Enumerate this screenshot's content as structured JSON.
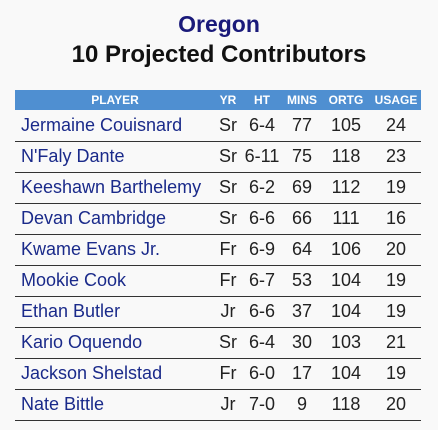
{
  "header": {
    "team": "Oregon",
    "subtitle": "10 Projected Contributors"
  },
  "table": {
    "columns": [
      "PLAYER",
      "YR",
      "HT",
      "MINS",
      "ORTG",
      "USAGE"
    ],
    "rows": [
      {
        "player": "Jermaine Couisnard",
        "yr": "Sr",
        "ht": "6-4",
        "mins": "77",
        "ortg": "105",
        "usage": "24"
      },
      {
        "player": "N'Faly Dante",
        "yr": "Sr",
        "ht": "6-11",
        "mins": "75",
        "ortg": "118",
        "usage": "23"
      },
      {
        "player": "Keeshawn Barthelemy",
        "yr": "Sr",
        "ht": "6-2",
        "mins": "69",
        "ortg": "112",
        "usage": "19"
      },
      {
        "player": "Devan Cambridge",
        "yr": "Sr",
        "ht": "6-6",
        "mins": "66",
        "ortg": "111",
        "usage": "16"
      },
      {
        "player": "Kwame Evans Jr.",
        "yr": "Fr",
        "ht": "6-9",
        "mins": "64",
        "ortg": "106",
        "usage": "20"
      },
      {
        "player": "Mookie Cook",
        "yr": "Fr",
        "ht": "6-7",
        "mins": "53",
        "ortg": "104",
        "usage": "19"
      },
      {
        "player": "Ethan Butler",
        "yr": "Jr",
        "ht": "6-6",
        "mins": "37",
        "ortg": "104",
        "usage": "19"
      },
      {
        "player": "Kario Oquendo",
        "yr": "Sr",
        "ht": "6-4",
        "mins": "30",
        "ortg": "103",
        "usage": "21"
      },
      {
        "player": "Jackson Shelstad",
        "yr": "Fr",
        "ht": "6-0",
        "mins": "17",
        "ortg": "104",
        "usage": "19"
      },
      {
        "player": "Nate Bittle",
        "yr": "Jr",
        "ht": "7-0",
        "mins": "9",
        "ortg": "118",
        "usage": "20"
      }
    ]
  },
  "colors": {
    "title": "#1a1a7a",
    "header_bar": "#4f8fd1",
    "player_name": "#1a2a8a"
  }
}
